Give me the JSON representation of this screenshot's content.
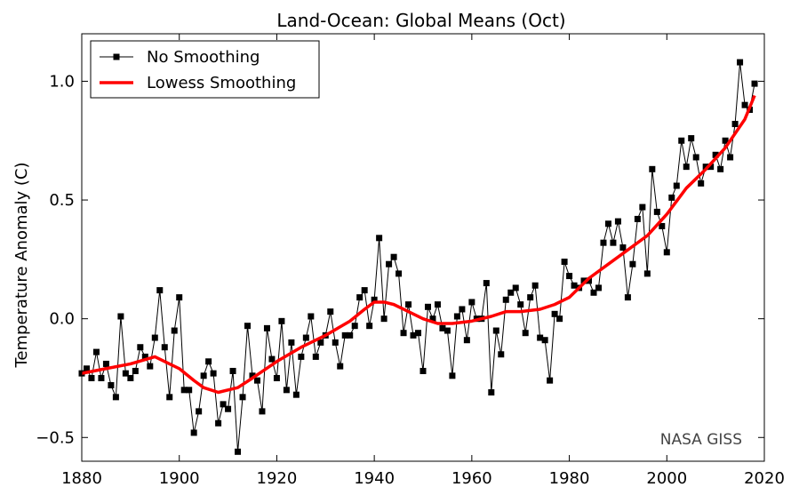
{
  "chart_data": {
    "type": "line",
    "title": "Land-Ocean: Global Means (Oct)",
    "xlabel": "",
    "ylabel": "Temperature Anomaly (C)",
    "xlim": [
      1880,
      2020
    ],
    "ylim": [
      -0.6,
      1.2
    ],
    "xticks": [
      1880,
      1900,
      1920,
      1940,
      1960,
      1980,
      2000,
      2020
    ],
    "xtick_labels": [
      "1880",
      "1900",
      "1920",
      "1940",
      "1960",
      "1980",
      "2000",
      "2020"
    ],
    "yticks": [
      -0.5,
      0.0,
      0.5,
      1.0
    ],
    "ytick_labels": [
      "−0.5",
      "0.0",
      "0.5",
      "1.0"
    ],
    "grid": false,
    "legend_position": "top-left",
    "annotation": "NASA GISS",
    "series": [
      {
        "name": "No Smoothing",
        "color": "#000000",
        "marker": "square",
        "x": [
          1880,
          1881,
          1882,
          1883,
          1884,
          1885,
          1886,
          1887,
          1888,
          1889,
          1890,
          1891,
          1892,
          1893,
          1894,
          1895,
          1896,
          1897,
          1898,
          1899,
          1900,
          1901,
          1902,
          1903,
          1904,
          1905,
          1906,
          1907,
          1908,
          1909,
          1910,
          1911,
          1912,
          1913,
          1914,
          1915,
          1916,
          1917,
          1918,
          1919,
          1920,
          1921,
          1922,
          1923,
          1924,
          1925,
          1926,
          1927,
          1928,
          1929,
          1930,
          1931,
          1932,
          1933,
          1934,
          1935,
          1936,
          1937,
          1938,
          1939,
          1940,
          1941,
          1942,
          1943,
          1944,
          1945,
          1946,
          1947,
          1948,
          1949,
          1950,
          1951,
          1952,
          1953,
          1954,
          1955,
          1956,
          1957,
          1958,
          1959,
          1960,
          1961,
          1962,
          1963,
          1964,
          1965,
          1966,
          1967,
          1968,
          1969,
          1970,
          1971,
          1972,
          1973,
          1974,
          1975,
          1976,
          1977,
          1978,
          1979,
          1980,
          1981,
          1982,
          1983,
          1984,
          1985,
          1986,
          1987,
          1988,
          1989,
          1990,
          1991,
          1992,
          1993,
          1994,
          1995,
          1996,
          1997,
          1998,
          1999,
          2000,
          2001,
          2002,
          2003,
          2004,
          2005,
          2006,
          2007,
          2008,
          2009,
          2010,
          2011,
          2012,
          2013,
          2014,
          2015,
          2016,
          2017,
          2018
        ],
        "values": [
          -0.23,
          -0.21,
          -0.25,
          -0.14,
          -0.25,
          -0.19,
          -0.28,
          -0.33,
          0.01,
          -0.23,
          -0.25,
          -0.22,
          -0.12,
          -0.16,
          -0.2,
          -0.08,
          0.12,
          -0.12,
          -0.33,
          -0.05,
          0.09,
          -0.3,
          -0.3,
          -0.48,
          -0.39,
          -0.24,
          -0.18,
          -0.23,
          -0.44,
          -0.36,
          -0.38,
          -0.22,
          -0.56,
          -0.33,
          -0.03,
          -0.24,
          -0.26,
          -0.39,
          -0.04,
          -0.17,
          -0.25,
          -0.01,
          -0.3,
          -0.1,
          -0.32,
          -0.16,
          -0.08,
          0.01,
          -0.16,
          -0.1,
          -0.07,
          0.03,
          -0.1,
          -0.2,
          -0.07,
          -0.07,
          -0.03,
          0.09,
          0.12,
          -0.03,
          0.08,
          0.34,
          0.0,
          0.23,
          0.26,
          0.19,
          -0.06,
          0.06,
          -0.07,
          -0.06,
          -0.22,
          0.05,
          0.0,
          0.06,
          -0.04,
          -0.05,
          -0.24,
          0.01,
          0.04,
          -0.09,
          0.07,
          0.0,
          0.0,
          0.15,
          -0.31,
          -0.05,
          -0.15,
          0.08,
          0.11,
          0.13,
          0.06,
          -0.06,
          0.09,
          0.14,
          -0.08,
          -0.09,
          -0.26,
          0.02,
          0.0,
          0.24,
          0.18,
          0.14,
          0.13,
          0.16,
          0.16,
          0.11,
          0.13,
          0.32,
          0.4,
          0.32,
          0.41,
          0.3,
          0.09,
          0.23,
          0.42,
          0.47,
          0.19,
          0.63,
          0.45,
          0.39,
          0.28,
          0.51,
          0.56,
          0.75,
          0.64,
          0.76,
          0.68,
          0.57,
          0.64,
          0.64,
          0.69,
          0.63,
          0.75,
          0.68,
          0.82,
          1.08,
          0.9,
          0.88,
          0.99
        ]
      },
      {
        "name": "Lowess Smoothing",
        "color": "#ff0000",
        "x": [
          1880,
          1885,
          1890,
          1895,
          1900,
          1903,
          1905,
          1908,
          1912,
          1915,
          1920,
          1925,
          1930,
          1935,
          1938,
          1940,
          1942,
          1944,
          1946,
          1948,
          1950,
          1953,
          1956,
          1960,
          1964,
          1967,
          1970,
          1974,
          1977,
          1980,
          1984,
          1988,
          1992,
          1996,
          2000,
          2004,
          2008,
          2012,
          2016,
          2018
        ],
        "values": [
          -0.23,
          -0.21,
          -0.19,
          -0.16,
          -0.21,
          -0.26,
          -0.29,
          -0.31,
          -0.29,
          -0.25,
          -0.18,
          -0.12,
          -0.07,
          -0.01,
          0.04,
          0.07,
          0.07,
          0.06,
          0.04,
          0.02,
          0.0,
          -0.02,
          -0.02,
          -0.01,
          0.01,
          0.03,
          0.03,
          0.04,
          0.06,
          0.09,
          0.17,
          0.23,
          0.29,
          0.35,
          0.44,
          0.55,
          0.63,
          0.72,
          0.84,
          0.94
        ]
      }
    ]
  }
}
